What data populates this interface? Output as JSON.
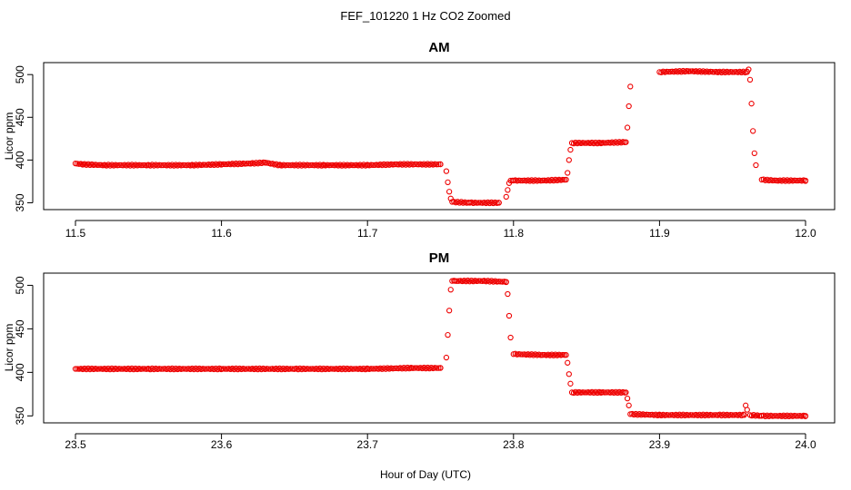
{
  "title": "FEF_101220  1 Hz CO2 Zoomed",
  "xlabel": "Hour of Day (UTC)",
  "colors": {
    "points": "#ee0000",
    "axes": "#000000"
  },
  "chart_data": [
    {
      "type": "scatter",
      "title": "AM",
      "ylabel": "Licor ppm",
      "xlim": [
        11.5,
        12.0
      ],
      "ylim": [
        342,
        514
      ],
      "x_ticks": [
        11.5,
        11.6,
        11.7,
        11.8,
        11.9,
        12.0
      ],
      "x_tick_labels": [
        "11.5",
        "11.6",
        "11.7",
        "11.8",
        "11.9",
        "12.0"
      ],
      "y_ticks": [
        350,
        400,
        450,
        500
      ],
      "y_tick_labels": [
        "350",
        "400",
        "450",
        "500"
      ],
      "series": [
        {
          "x": [
            11.5,
            11.505,
            11.52,
            11.55,
            11.58,
            11.6,
            11.62,
            11.63,
            11.64,
            11.67,
            11.7,
            11.72,
            11.75,
            11.754,
            11.755,
            11.756,
            11.757,
            11.758,
            11.77,
            11.79,
            11.795,
            11.796,
            11.797,
            11.798,
            11.8,
            11.82,
            11.836,
            11.837,
            11.838,
            11.839,
            11.84,
            11.86,
            11.877,
            11.878,
            11.879,
            11.88,
            11.9,
            11.92,
            11.94,
            11.96,
            11.961,
            11.962,
            11.963,
            11.964,
            11.965,
            11.966,
            11.97,
            11.98,
            12.0
          ],
          "y": [
            396,
            395,
            394,
            394,
            394,
            395,
            396,
            397,
            394,
            394,
            394,
            395,
            395,
            387,
            374,
            363,
            355,
            351,
            350,
            350,
            357,
            365,
            373,
            376,
            376,
            376,
            377,
            385,
            400,
            412,
            420,
            420,
            421,
            438,
            463,
            486,
            503,
            504,
            503,
            503,
            506,
            494,
            466,
            434,
            408,
            394,
            377,
            376,
            376
          ]
        }
      ]
    },
    {
      "type": "scatter",
      "title": "PM",
      "ylabel": "Licor ppm",
      "xlim": [
        23.5,
        24.0
      ],
      "ylim": [
        342,
        514
      ],
      "x_ticks": [
        23.5,
        23.6,
        23.7,
        23.8,
        23.9,
        24.0
      ],
      "x_tick_labels": [
        "23.5",
        "23.6",
        "23.7",
        "23.8",
        "23.9",
        "24.0"
      ],
      "y_ticks": [
        350,
        400,
        450,
        500
      ],
      "y_tick_labels": [
        "350",
        "400",
        "450",
        "500"
      ],
      "series": [
        {
          "x": [
            23.5,
            23.55,
            23.6,
            23.65,
            23.7,
            23.73,
            23.75,
            23.754,
            23.755,
            23.756,
            23.757,
            23.758,
            23.76,
            23.78,
            23.795,
            23.796,
            23.797,
            23.798,
            23.8,
            23.82,
            23.836,
            23.837,
            23.838,
            23.839,
            23.84,
            23.86,
            23.877,
            23.878,
            23.879,
            23.88,
            23.9,
            23.94,
            23.958,
            23.959,
            23.96,
            23.962,
            23.97,
            24.0
          ],
          "y": [
            404,
            404,
            404,
            404,
            404,
            405,
            405,
            417,
            443,
            471,
            495,
            505,
            505,
            505,
            504,
            490,
            465,
            440,
            421,
            420,
            420,
            411,
            398,
            387,
            377,
            377,
            377,
            370,
            362,
            352,
            351,
            351,
            351,
            362,
            357,
            351,
            350,
            350
          ]
        }
      ]
    }
  ]
}
